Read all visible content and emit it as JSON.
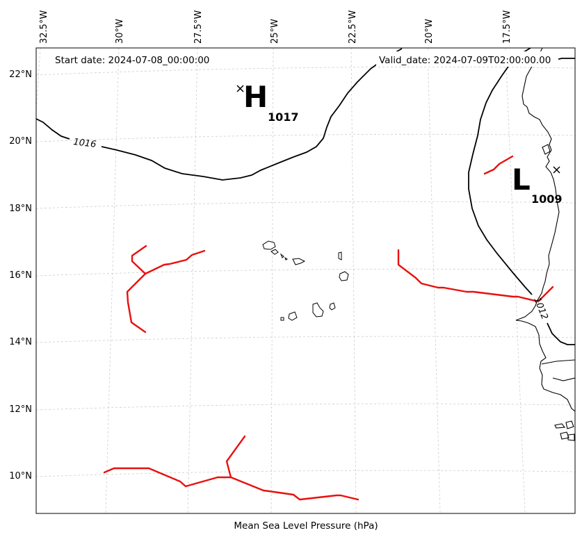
{
  "map": {
    "start_date_text": "Start date: 2024-07-08_00:00:00",
    "valid_date_text": "Valid_date: 2024-07-09T02:00:00.00",
    "footer_label": "Mean Sea Level Pressure (hPa)",
    "longitude_ticks": [
      "32.5°W",
      "30°W",
      "27.5°W",
      "25°W",
      "22.5°W",
      "20°W",
      "17.5°W"
    ],
    "latitude_ticks": [
      "22°N",
      "20°N",
      "18°N",
      "16°N",
      "14°N",
      "12°N",
      "10°N"
    ],
    "pressure_centers": [
      {
        "type": "high",
        "letter": "H",
        "value": "1017"
      },
      {
        "type": "low",
        "letter": "L",
        "value": "1009"
      }
    ],
    "contour_labels": [
      "1016",
      "1012"
    ],
    "colors": {
      "trough_lines": "#e8100c",
      "isobars": "#000000",
      "gridlines": "#cccccc"
    },
    "gridlines": true
  }
}
